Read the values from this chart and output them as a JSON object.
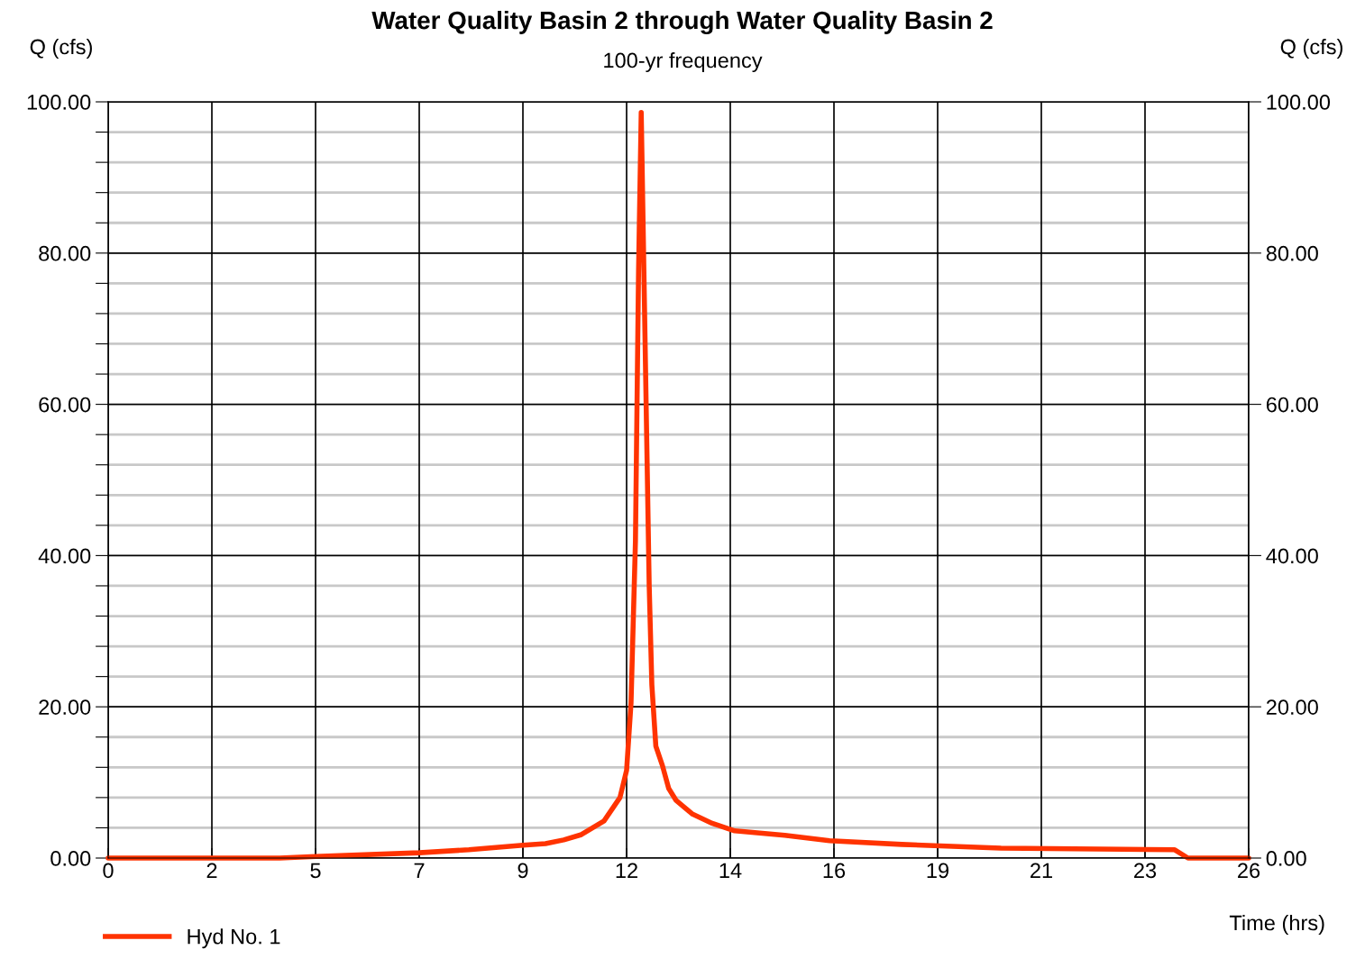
{
  "chart_data": {
    "type": "line",
    "title": "Water Quality Basin 2 through Water Quality Basin 2",
    "subtitle": "100-yr frequency",
    "xlabel": "Time (hrs)",
    "ylabel": "Q (cfs)",
    "y2label": "Q (cfs)",
    "xlim": [
      0,
      25.74
    ],
    "xticks": [
      {
        "value": 0,
        "label": "0"
      },
      {
        "value": 2.34,
        "label": "2"
      },
      {
        "value": 4.68,
        "label": "5"
      },
      {
        "value": 7.02,
        "label": "7"
      },
      {
        "value": 9.36,
        "label": "9"
      },
      {
        "value": 11.7,
        "label": "12"
      },
      {
        "value": 14.04,
        "label": "14"
      },
      {
        "value": 16.38,
        "label": "16"
      },
      {
        "value": 18.72,
        "label": "19"
      },
      {
        "value": 21.06,
        "label": "21"
      },
      {
        "value": 23.4,
        "label": "23"
      },
      {
        "value": 25.74,
        "label": "26"
      }
    ],
    "ylim": [
      0,
      100
    ],
    "yticks": [
      {
        "value": 0,
        "label": "0.00"
      },
      {
        "value": 4,
        "label": null
      },
      {
        "value": 8,
        "label": null
      },
      {
        "value": 12,
        "label": null
      },
      {
        "value": 16,
        "label": null
      },
      {
        "value": 20,
        "label": "20.00"
      },
      {
        "value": 24,
        "label": null
      },
      {
        "value": 28,
        "label": null
      },
      {
        "value": 32,
        "label": null
      },
      {
        "value": 36,
        "label": null
      },
      {
        "value": 40,
        "label": "40.00"
      },
      {
        "value": 44,
        "label": null
      },
      {
        "value": 48,
        "label": null
      },
      {
        "value": 52,
        "label": null
      },
      {
        "value": 56,
        "label": null
      },
      {
        "value": 60,
        "label": "60.00"
      },
      {
        "value": 64,
        "label": null
      },
      {
        "value": 68,
        "label": null
      },
      {
        "value": 72,
        "label": null
      },
      {
        "value": 76,
        "label": null
      },
      {
        "value": 80,
        "label": "80.00"
      },
      {
        "value": 84,
        "label": null
      },
      {
        "value": 88,
        "label": null
      },
      {
        "value": 92,
        "label": null
      },
      {
        "value": 96,
        "label": null
      },
      {
        "value": 100,
        "label": "100.00"
      }
    ],
    "y2lim": [
      0,
      100
    ],
    "y2ticks": [
      {
        "value": 0,
        "label": "0.00"
      },
      {
        "value": 20,
        "label": "20.00"
      },
      {
        "value": 40,
        "label": "40.00"
      },
      {
        "value": 60,
        "label": "60.00"
      },
      {
        "value": 80,
        "label": "80.00"
      },
      {
        "value": 100,
        "label": "100.00"
      }
    ],
    "grid": true,
    "legend": "bottom left",
    "marker": "none",
    "line_style": "solid",
    "series": [
      {
        "name": "Hyd No. 1",
        "color": "#ff3300",
        "x": [
          0,
          3.87,
          4.68,
          7.02,
          8.14,
          9.36,
          9.87,
          10.28,
          10.68,
          11.19,
          11.55,
          11.7,
          11.8,
          11.9,
          11.97,
          12.03,
          12.09,
          12.21,
          12.27,
          12.36,
          12.51,
          12.65,
          12.82,
          13.19,
          13.63,
          14.14,
          15.27,
          16.28,
          17.91,
          20.15,
          24.07,
          24.37,
          25.74
        ],
        "values": [
          0,
          0,
          0.2,
          0.7,
          1.1,
          1.7,
          1.9,
          2.4,
          3.1,
          4.9,
          8.0,
          11.6,
          20.5,
          42,
          77.7,
          98.6,
          77.7,
          36,
          22.9,
          14.8,
          12.2,
          9.2,
          7.6,
          5.8,
          4.6,
          3.6,
          3.0,
          2.3,
          1.8,
          1.3,
          1.1,
          0,
          0
        ]
      }
    ]
  }
}
